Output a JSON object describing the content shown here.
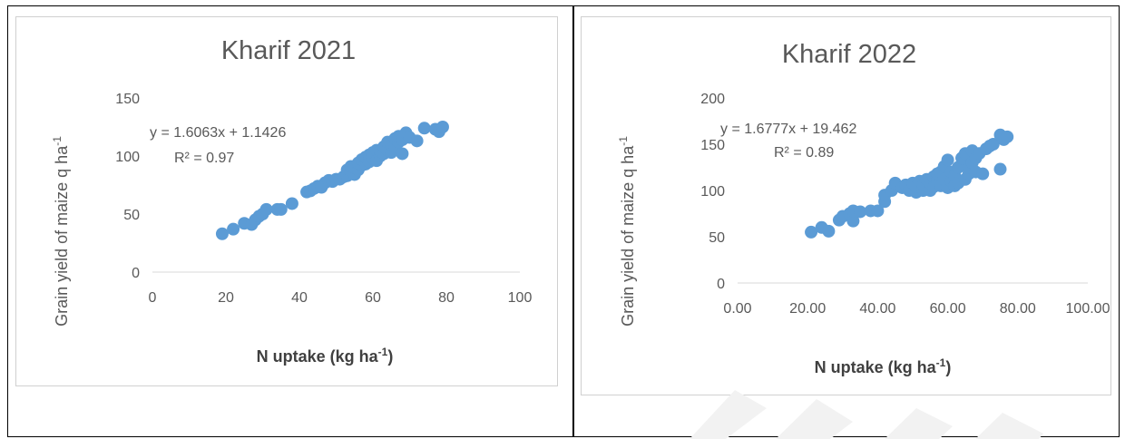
{
  "chart_data": [
    {
      "type": "scatter",
      "title": "Kharif 2021",
      "xlabel": "N uptake (kg ha",
      "xlabel_sup": "-1",
      "xlabel_end": ")",
      "ylabel": "Grain yield of maize q  ha",
      "ylabel_sup": "-1",
      "xlim": [
        0,
        100
      ],
      "ylim": [
        0,
        150
      ],
      "xticks": [
        "0",
        "20",
        "40",
        "60",
        "80",
        "100"
      ],
      "yticks": [
        "0",
        "50",
        "100",
        "150"
      ],
      "grid": false,
      "marker_color": "#5b9bd5",
      "trendline": {
        "equation": "y = 1.6063x + 1.1426",
        "r2": "R² = 0.97",
        "slope": 1.6063,
        "intercept": 1.1426
      },
      "points": [
        [
          19,
          33
        ],
        [
          22,
          37
        ],
        [
          25,
          42
        ],
        [
          27,
          41
        ],
        [
          28,
          45
        ],
        [
          29,
          48
        ],
        [
          30,
          50
        ],
        [
          31,
          54
        ],
        [
          34,
          54
        ],
        [
          35,
          54
        ],
        [
          38,
          59
        ],
        [
          42,
          69
        ],
        [
          43,
          70
        ],
        [
          44,
          72
        ],
        [
          45,
          74
        ],
        [
          46,
          73
        ],
        [
          47,
          77
        ],
        [
          48,
          79
        ],
        [
          49,
          78
        ],
        [
          50,
          80
        ],
        [
          51,
          80
        ],
        [
          52,
          82
        ],
        [
          53,
          83
        ],
        [
          53,
          88
        ],
        [
          54,
          86
        ],
        [
          54,
          91
        ],
        [
          55,
          84
        ],
        [
          55,
          90
        ],
        [
          56,
          88
        ],
        [
          56,
          94
        ],
        [
          57,
          92
        ],
        [
          57,
          97
        ],
        [
          58,
          93
        ],
        [
          58,
          99
        ],
        [
          59,
          95
        ],
        [
          59,
          101
        ],
        [
          60,
          98
        ],
        [
          60,
          103
        ],
        [
          61,
          96
        ],
        [
          61,
          105
        ],
        [
          62,
          100
        ],
        [
          62,
          104
        ],
        [
          63,
          102
        ],
        [
          63,
          108
        ],
        [
          64,
          105
        ],
        [
          64,
          112
        ],
        [
          65,
          103
        ],
        [
          65,
          110
        ],
        [
          66,
          108
        ],
        [
          66,
          115
        ],
        [
          67,
          112
        ],
        [
          67,
          117
        ],
        [
          68,
          102
        ],
        [
          68,
          114
        ],
        [
          69,
          120
        ],
        [
          70,
          116
        ],
        [
          72,
          113
        ],
        [
          74,
          124
        ],
        [
          77,
          123
        ],
        [
          78,
          121
        ],
        [
          79,
          125
        ]
      ]
    },
    {
      "type": "scatter",
      "title": "Kharif 2022",
      "xlabel": "N uptake (kg ha",
      "xlabel_sup": "-1",
      "xlabel_end": ")",
      "ylabel": "Grain yield of maize q  ha",
      "ylabel_sup": "-1",
      "xlim": [
        0,
        100
      ],
      "ylim": [
        0,
        200
      ],
      "xticks": [
        "0.00",
        "20.00",
        "40.00",
        "60.00",
        "80.00",
        "100.00"
      ],
      "yticks": [
        "0",
        "50",
        "100",
        "150",
        "200"
      ],
      "grid": false,
      "marker_color": "#5b9bd5",
      "trendline": {
        "equation": "y = 1.6777x + 19.462",
        "r2": "R² = 0.89",
        "slope": 1.6777,
        "intercept": 19.462
      },
      "points": [
        [
          21,
          55
        ],
        [
          24,
          60
        ],
        [
          26,
          56
        ],
        [
          29,
          68
        ],
        [
          30,
          72
        ],
        [
          32,
          75
        ],
        [
          33,
          67
        ],
        [
          33,
          78
        ],
        [
          35,
          77
        ],
        [
          38,
          78
        ],
        [
          40,
          78
        ],
        [
          42,
          88
        ],
        [
          42,
          95
        ],
        [
          44,
          100
        ],
        [
          45,
          108
        ],
        [
          47,
          103
        ],
        [
          48,
          106
        ],
        [
          49,
          100
        ],
        [
          50,
          108
        ],
        [
          51,
          98
        ],
        [
          51,
          104
        ],
        [
          52,
          110
        ],
        [
          53,
          100
        ],
        [
          53,
          106
        ],
        [
          54,
          112
        ],
        [
          55,
          100
        ],
        [
          55,
          108
        ],
        [
          56,
          104
        ],
        [
          56,
          115
        ],
        [
          57,
          110
        ],
        [
          57,
          118
        ],
        [
          58,
          105
        ],
        [
          58,
          120
        ],
        [
          59,
          112
        ],
        [
          59,
          126
        ],
        [
          60,
          103
        ],
        [
          60,
          133
        ],
        [
          61,
          110
        ],
        [
          61,
          120
        ],
        [
          62,
          105
        ],
        [
          62,
          116
        ],
        [
          63,
          108
        ],
        [
          63,
          125
        ],
        [
          64,
          135
        ],
        [
          65,
          112
        ],
        [
          65,
          140
        ],
        [
          66,
          118
        ],
        [
          66,
          125
        ],
        [
          67,
          130
        ],
        [
          67,
          143
        ],
        [
          68,
          120
        ],
        [
          68,
          135
        ],
        [
          69,
          140
        ],
        [
          70,
          118
        ],
        [
          71,
          145
        ],
        [
          72,
          148
        ],
        [
          73,
          150
        ],
        [
          75,
          123
        ],
        [
          75,
          160
        ],
        [
          76,
          155
        ],
        [
          77,
          158
        ]
      ]
    }
  ]
}
